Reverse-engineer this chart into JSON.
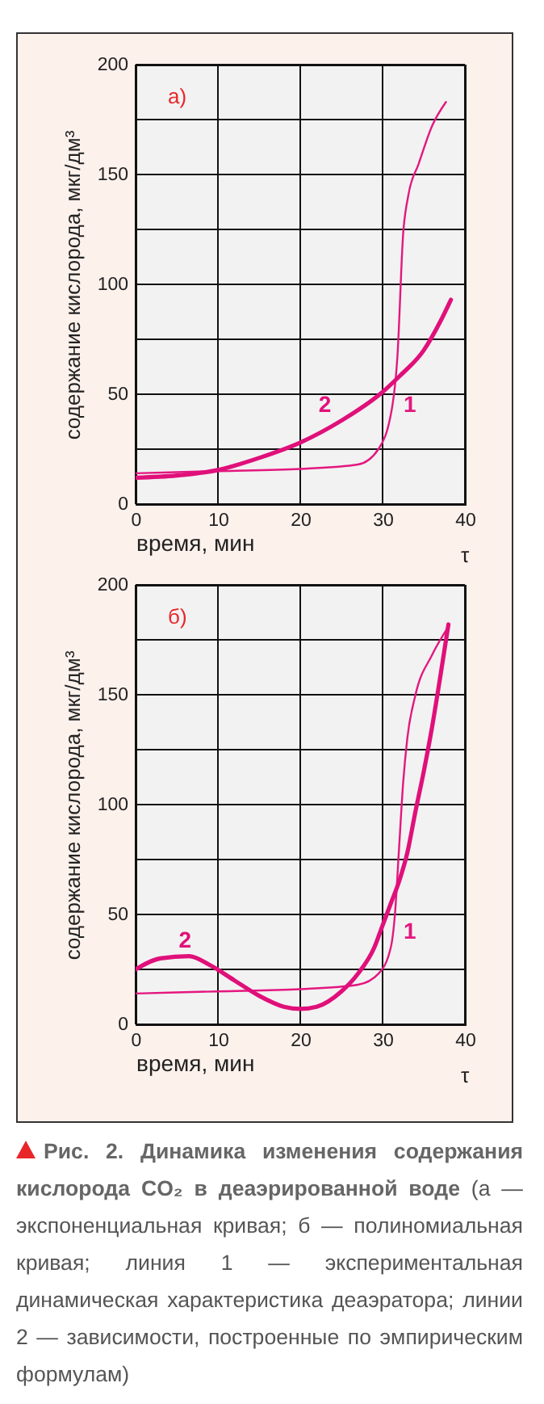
{
  "chart_data": [
    {
      "type": "line",
      "title": "а)",
      "xlabel": "время, мин",
      "ylabel": "содержание кислорода, мкг/дм³",
      "annotations": [
        "τ"
      ],
      "xlim": [
        0,
        40
      ],
      "xticks": [
        0,
        10,
        20,
        30,
        40
      ],
      "ylim": [
        0,
        200
      ],
      "yticks": [
        0,
        {
          "value": 25,
          "label": null
        },
        50,
        {
          "value": 75,
          "label": null
        },
        100,
        {
          "value": 125,
          "label": null
        },
        150,
        {
          "value": 175,
          "label": null
        },
        200
      ],
      "grid": true,
      "series": [
        {
          "name": "1",
          "color": "#e4177f",
          "x": [
            0,
            10,
            20,
            27,
            29.5,
            31.2,
            31.8,
            32.5,
            33.1,
            34.4,
            36,
            37.7
          ],
          "values": [
            14,
            15,
            16,
            18,
            25,
            45,
            67,
            123,
            140,
            155,
            172,
            183
          ]
        },
        {
          "name": "2",
          "color": "#e0107a",
          "x": [
            0,
            5,
            10,
            15,
            20,
            25,
            30,
            32,
            35,
            37,
            38.3
          ],
          "values": [
            12,
            13,
            15.5,
            21,
            28,
            38,
            51,
            58,
            70,
            83,
            93
          ]
        }
      ]
    },
    {
      "type": "line",
      "title": "б)",
      "xlabel": "время, мин",
      "ylabel": "содержание кислорода, мкг/дм³",
      "annotations": [
        "τ",
        "Рис. 2. Динамика изменения содержания кислорода CO₂ в деаэрированной воде",
        "(а — экспоненциальная кривая; б — полиномиальная кривая; линия 1 — экспериментальная динамическая характеристика деаэратора; линии 2 — зависимости, построенные по эмпирическим формулам)"
      ],
      "xlim": [
        0,
        40
      ],
      "xticks": [
        0,
        10,
        20,
        30,
        40
      ],
      "ylim": [
        0,
        200
      ],
      "yticks": [
        0,
        {
          "value": 25,
          "label": null
        },
        50,
        {
          "value": 75,
          "label": null
        },
        100,
        {
          "value": 125,
          "label": null
        },
        150,
        {
          "value": 175,
          "label": null
        },
        200
      ],
      "grid": true,
      "series": [
        {
          "name": "1",
          "color": "#e4177f",
          "x": [
            0,
            10,
            20,
            27,
            29.5,
            31,
            31.5,
            32,
            32.5,
            33,
            34,
            36,
            38
          ],
          "values": [
            14,
            15,
            16,
            18,
            23,
            35,
            50,
            80,
            110,
            130,
            150,
            168,
            181
          ]
        },
        {
          "name": "2",
          "color": "#e0107a",
          "x": [
            0,
            3,
            6.5,
            9,
            12,
            15,
            18,
            20,
            22,
            25,
            27,
            29,
            30,
            31,
            32,
            33,
            34,
            35,
            36,
            37,
            38
          ],
          "values": [
            25,
            30,
            31,
            27,
            20,
            13,
            8,
            7,
            8,
            15,
            23,
            35,
            45,
            55,
            65,
            78,
            97,
            115,
            135,
            158,
            182
          ]
        }
      ]
    }
  ]
}
